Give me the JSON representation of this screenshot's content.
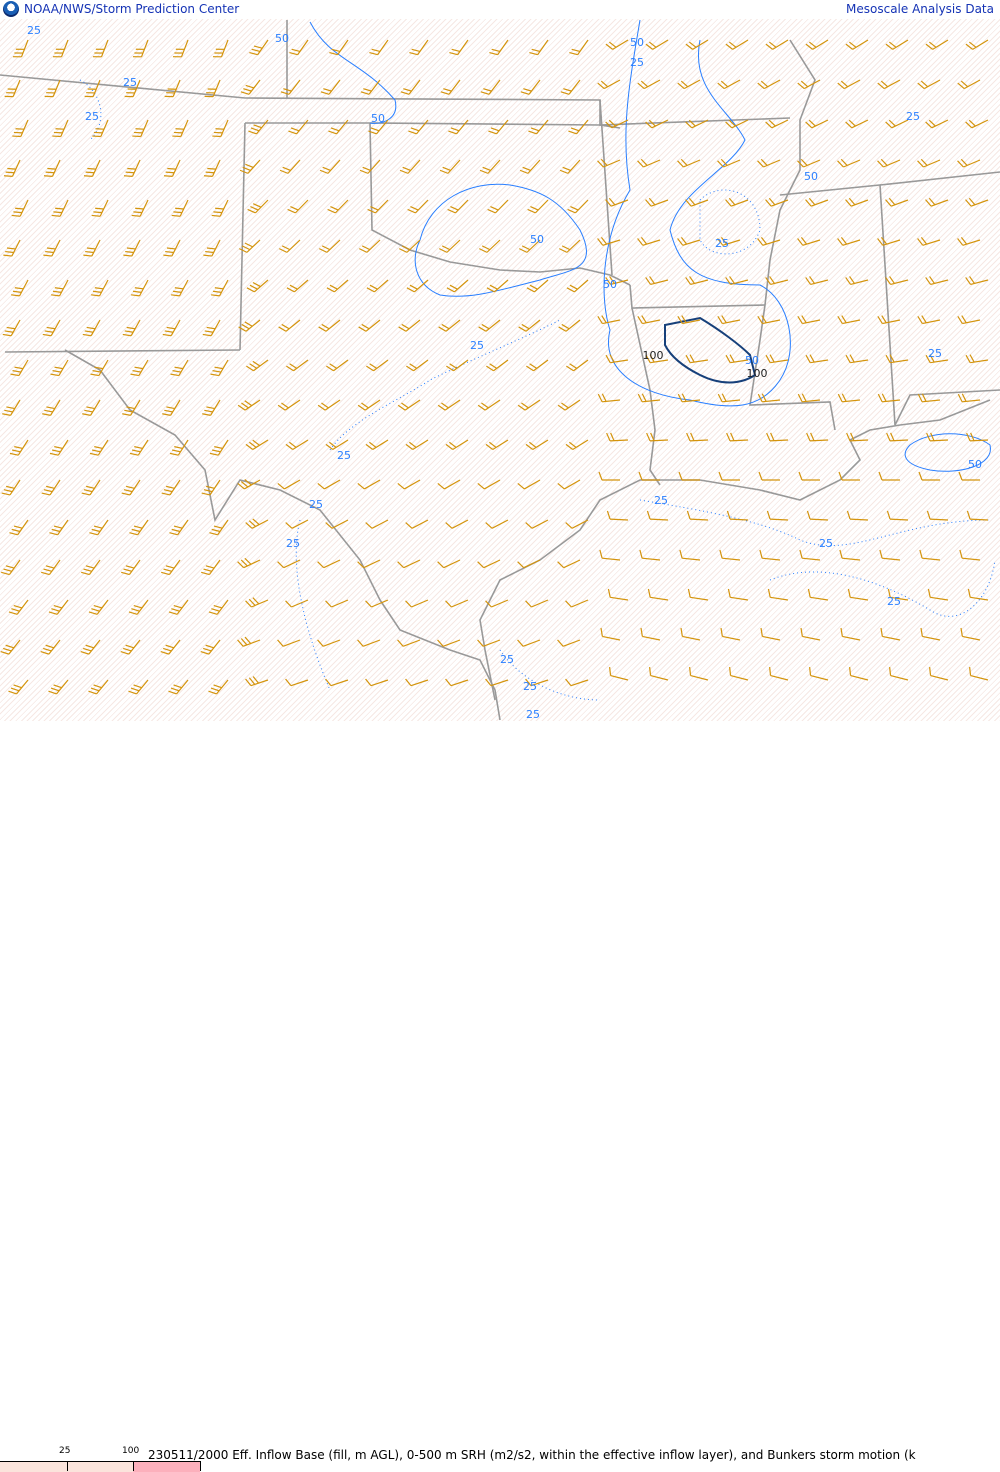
{
  "header": {
    "title_left": "NOAA/NWS/Storm Prediction Center",
    "title_right": "Mesoscale Analysis Data",
    "logo_icon": "noaa-logo-icon"
  },
  "map": {
    "colors": {
      "borders": "#999999",
      "wind_barbs": "#d4940c",
      "srh_contour": "#2a7fff",
      "srh_contour_high": "#17407a",
      "fill_low": "#fbe4dc",
      "fill_high": "#fcb0bc"
    },
    "contour_labels": [
      {
        "text": "25"
      },
      {
        "text": "25"
      },
      {
        "text": "25"
      },
      {
        "text": "50"
      },
      {
        "text": "50"
      },
      {
        "text": "50"
      },
      {
        "text": "25"
      },
      {
        "text": "25"
      },
      {
        "text": "50"
      },
      {
        "text": "50"
      },
      {
        "text": "25"
      },
      {
        "text": "50"
      },
      {
        "text": "25"
      },
      {
        "text": "100"
      },
      {
        "text": "50"
      },
      {
        "text": "100"
      },
      {
        "text": "25"
      },
      {
        "text": "25"
      },
      {
        "text": "25"
      },
      {
        "text": "25"
      },
      {
        "text": "25"
      },
      {
        "text": "25"
      },
      {
        "text": "25"
      },
      {
        "text": "25"
      },
      {
        "text": "25"
      },
      {
        "text": "50"
      },
      {
        "text": "25"
      }
    ]
  },
  "legend": {
    "ticks": [
      "25",
      "100"
    ],
    "caption": "230511/2000 Eff. Inflow Base (fill, m AGL), 0-500 m SRH (m2/s2, within the effective inflow layer), and Bunkers storm motion (k"
  }
}
